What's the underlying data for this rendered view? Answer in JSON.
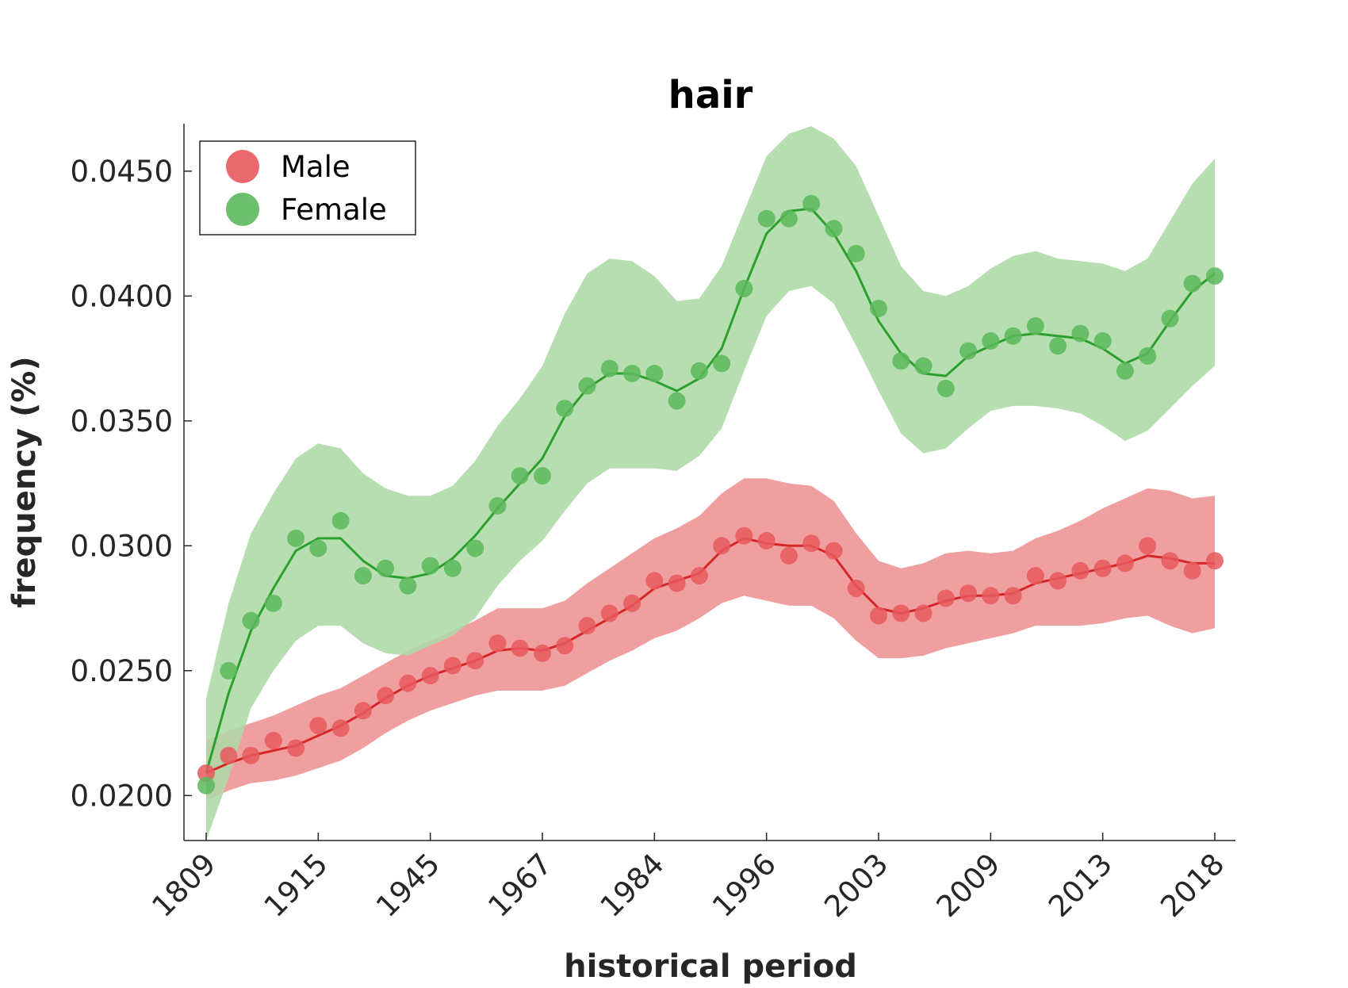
{
  "chart_data": {
    "type": "line",
    "title": "hair",
    "xlabel": "historical period",
    "ylabel": "frequency (%)",
    "categories": [
      "1809",
      "1915",
      "1945",
      "1967",
      "1984",
      "1996",
      "2003",
      "2009",
      "2013",
      "2018"
    ],
    "y_ticks": [
      "0.0200",
      "0.0250",
      "0.0300",
      "0.0350",
      "0.0400",
      "0.0450"
    ],
    "ylim": [
      0.0182,
      0.0469
    ],
    "legend": {
      "placement": "top-left",
      "entries": [
        "Male",
        "Female"
      ]
    },
    "grid": false,
    "series": [
      {
        "name": "Male",
        "color": "#d62728",
        "fill": "#ef9a9b",
        "dot": "#e8595d",
        "points": [
          0.0209,
          0.0216,
          0.0216,
          0.0222,
          0.0219,
          0.0228,
          0.0227,
          0.0234,
          0.024,
          0.0245,
          0.0248,
          0.0252,
          0.0254,
          0.0261,
          0.0259,
          0.0257,
          0.026,
          0.0268,
          0.0273,
          0.0277,
          0.0286,
          0.0285,
          0.0288,
          0.03,
          0.0304,
          0.0302,
          0.0296,
          0.0301,
          0.0298,
          0.0283,
          0.0272,
          0.0273,
          0.0273,
          0.0279,
          0.0281,
          0.028,
          0.028,
          0.0288,
          0.0286,
          0.029,
          0.0291,
          0.0293,
          0.03,
          0.0294,
          0.029,
          0.0294
        ],
        "trend": [
          0.0209,
          0.0213,
          0.0216,
          0.0218,
          0.022,
          0.0224,
          0.0228,
          0.0233,
          0.0239,
          0.0244,
          0.0248,
          0.0251,
          0.0254,
          0.0258,
          0.0259,
          0.0258,
          0.0261,
          0.0266,
          0.0271,
          0.0276,
          0.0283,
          0.0286,
          0.0289,
          0.0298,
          0.0303,
          0.0301,
          0.03,
          0.03,
          0.0296,
          0.0284,
          0.0275,
          0.0273,
          0.0275,
          0.0278,
          0.028,
          0.028,
          0.0281,
          0.0285,
          0.0287,
          0.0289,
          0.0291,
          0.0293,
          0.0296,
          0.0295,
          0.0293,
          0.0293
        ],
        "upper": [
          0.0222,
          0.0226,
          0.0229,
          0.0232,
          0.0236,
          0.024,
          0.0243,
          0.0248,
          0.0253,
          0.0258,
          0.0262,
          0.0266,
          0.027,
          0.0275,
          0.0275,
          0.0275,
          0.0278,
          0.0285,
          0.0291,
          0.0297,
          0.0303,
          0.0307,
          0.0312,
          0.0321,
          0.0327,
          0.0327,
          0.0325,
          0.0324,
          0.0318,
          0.0305,
          0.0294,
          0.0291,
          0.0293,
          0.0297,
          0.0298,
          0.0297,
          0.0298,
          0.0303,
          0.0306,
          0.031,
          0.0315,
          0.0319,
          0.0323,
          0.0322,
          0.0319,
          0.032
        ],
        "lower": [
          0.0198,
          0.0202,
          0.0205,
          0.0206,
          0.0208,
          0.0211,
          0.0214,
          0.0219,
          0.0225,
          0.023,
          0.0234,
          0.0237,
          0.024,
          0.0242,
          0.0242,
          0.0242,
          0.0244,
          0.0249,
          0.0254,
          0.0258,
          0.0263,
          0.0266,
          0.0271,
          0.0277,
          0.028,
          0.0278,
          0.0276,
          0.0276,
          0.0271,
          0.0262,
          0.0255,
          0.0255,
          0.0256,
          0.0259,
          0.0261,
          0.0263,
          0.0265,
          0.0268,
          0.0268,
          0.0268,
          0.0269,
          0.0271,
          0.0272,
          0.0268,
          0.0265,
          0.0267
        ]
      },
      {
        "name": "Female",
        "color": "#2ca02c",
        "fill": "#add9a6",
        "dot": "#5cb85c",
        "points": [
          0.0204,
          0.025,
          0.027,
          0.0277,
          0.0303,
          0.0299,
          0.031,
          0.0288,
          0.0291,
          0.0284,
          0.0292,
          0.0291,
          0.0299,
          0.0316,
          0.0328,
          0.0328,
          0.0355,
          0.0364,
          0.0371,
          0.0369,
          0.0369,
          0.0358,
          0.037,
          0.0373,
          0.0403,
          0.0431,
          0.0431,
          0.0437,
          0.0427,
          0.0417,
          0.0395,
          0.0374,
          0.0372,
          0.0363,
          0.0378,
          0.0382,
          0.0384,
          0.0388,
          0.038,
          0.0385,
          0.0382,
          0.037,
          0.0376,
          0.0391,
          0.0405,
          0.0408
        ],
        "trend": [
          0.0209,
          0.0241,
          0.0266,
          0.0283,
          0.0298,
          0.0303,
          0.0303,
          0.0294,
          0.0288,
          0.0287,
          0.0289,
          0.0295,
          0.0304,
          0.0315,
          0.0325,
          0.0335,
          0.0352,
          0.0363,
          0.0369,
          0.0369,
          0.0366,
          0.0362,
          0.0367,
          0.0379,
          0.0403,
          0.0425,
          0.0434,
          0.0435,
          0.0425,
          0.041,
          0.039,
          0.0377,
          0.0369,
          0.0368,
          0.0376,
          0.038,
          0.0384,
          0.0385,
          0.0384,
          0.0383,
          0.0379,
          0.0373,
          0.0377,
          0.039,
          0.0402,
          0.0409
        ],
        "upper": [
          0.0239,
          0.0277,
          0.0305,
          0.0321,
          0.0335,
          0.0341,
          0.0339,
          0.0329,
          0.0323,
          0.032,
          0.032,
          0.0324,
          0.0334,
          0.0348,
          0.0359,
          0.0372,
          0.0393,
          0.0409,
          0.0415,
          0.0414,
          0.0408,
          0.0398,
          0.0399,
          0.0412,
          0.0434,
          0.0456,
          0.0465,
          0.0468,
          0.0463,
          0.0452,
          0.0432,
          0.0412,
          0.0402,
          0.04,
          0.0404,
          0.0411,
          0.0416,
          0.0418,
          0.0415,
          0.0414,
          0.0413,
          0.041,
          0.0415,
          0.043,
          0.0445,
          0.0455
        ],
        "lower": [
          0.0182,
          0.0207,
          0.0235,
          0.025,
          0.0262,
          0.0268,
          0.0268,
          0.0261,
          0.0257,
          0.0256,
          0.026,
          0.0264,
          0.0271,
          0.0284,
          0.0294,
          0.0302,
          0.0314,
          0.0325,
          0.0331,
          0.0331,
          0.0331,
          0.033,
          0.0336,
          0.0347,
          0.037,
          0.0392,
          0.0402,
          0.0404,
          0.0397,
          0.038,
          0.0362,
          0.0345,
          0.0337,
          0.0339,
          0.0347,
          0.0354,
          0.0356,
          0.0356,
          0.0355,
          0.0353,
          0.0348,
          0.0342,
          0.0346,
          0.0355,
          0.0364,
          0.0372
        ]
      }
    ]
  }
}
